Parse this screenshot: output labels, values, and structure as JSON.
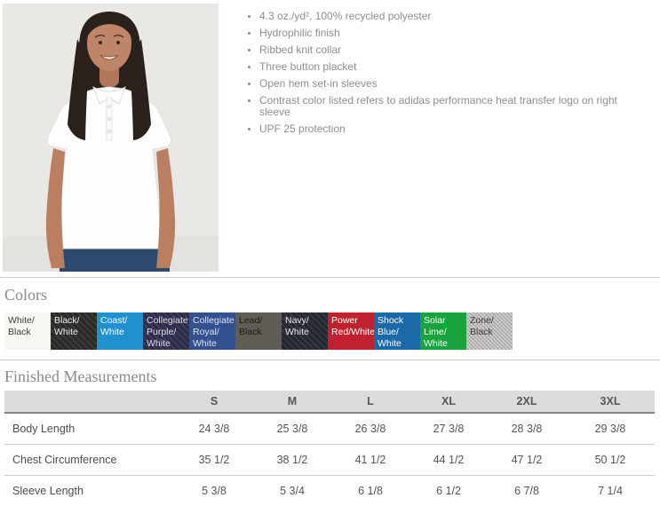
{
  "features": {
    "items": [
      "4.3 oz./yd², 100% recycled polyester",
      "Hydrophilic finish",
      "Ribbed knit collar",
      "Three button placket",
      "Open hem set-in sleeves",
      "Contrast color listed refers to adidas performance heat transfer logo on right sleeve",
      "UPF 25 protection"
    ]
  },
  "colors_section": {
    "title": "Colors",
    "swatches": [
      {
        "label": "White/\nBlack",
        "bg": "#f8f6f0",
        "fg": "#3c3c3c",
        "texture": "none"
      },
      {
        "label": "Black/\nWhite",
        "bg": "#2b2b29",
        "fg": "#e9e9e9",
        "texture": "weave"
      },
      {
        "label": "Coast/\nWhite",
        "bg": "#2090ce",
        "fg": "#ffffff",
        "texture": "none"
      },
      {
        "label": "Collegiate\nPurple/\nWhite",
        "bg": "#2e2d4d",
        "fg": "#dcdce8",
        "texture": "weave"
      },
      {
        "label": "Collegiate\nRoyal/\nWhite",
        "bg": "#33518e",
        "fg": "#dde4ef",
        "texture": "none"
      },
      {
        "label": "Lead/\nBlack",
        "bg": "#615c56",
        "fg": "#1a1a1a",
        "texture": "none"
      },
      {
        "label": "Navy/\nWhite",
        "bg": "#262932",
        "fg": "#e9e9e9",
        "texture": "weave"
      },
      {
        "label": "Power\nRed/White",
        "bg": "#c1202e",
        "fg": "#ffffff",
        "texture": "none"
      },
      {
        "label": "Shock\nBlue/\nWhite",
        "bg": "#1c69a8",
        "fg": "#ffffff",
        "texture": "none"
      },
      {
        "label": "Solar\nLime/\nWhite",
        "bg": "#17a43c",
        "fg": "#ffffff",
        "texture": "none"
      },
      {
        "label": "Zone/\nBlack",
        "bg": "#b8b6b4",
        "fg": "#3a3a3a",
        "texture": "heather"
      }
    ]
  },
  "measurements": {
    "title": "Finished Measurements",
    "columns": [
      "S",
      "M",
      "L",
      "XL",
      "2XL",
      "3XL"
    ],
    "rows": [
      {
        "label": "Body Length",
        "values": [
          "24 3/8",
          "25 3/8",
          "26 3/8",
          "27 3/8",
          "28 3/8",
          "29 3/8"
        ]
      },
      {
        "label": "Chest Circumference",
        "values": [
          "35 1/2",
          "38 1/2",
          "41 1/2",
          "44 1/2",
          "47 1/2",
          "50 1/2"
        ]
      },
      {
        "label": "Sleeve Length",
        "values": [
          "5 3/8",
          "5 3/4",
          "6 1/8",
          "6 1/2",
          "6 7/8",
          "7 1/4"
        ]
      }
    ]
  }
}
